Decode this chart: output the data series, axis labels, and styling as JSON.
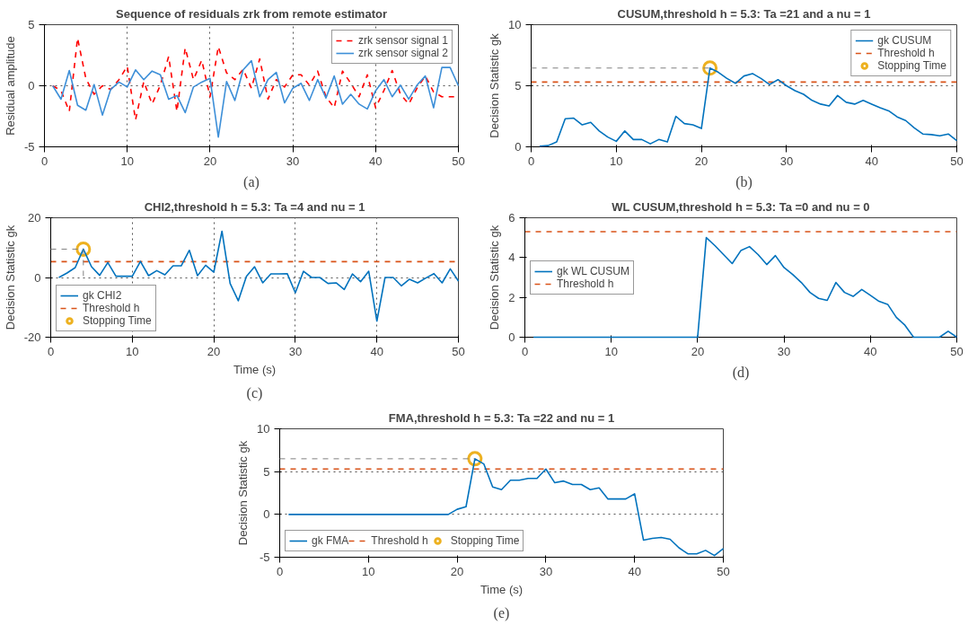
{
  "chart_data": [
    {
      "type": "line",
      "title": "Sequence of residuals zrk from remote estimator",
      "ylabel": "Residual amplitude",
      "annotations": [
        "(a)"
      ],
      "x": [
        1,
        2,
        3,
        4,
        5,
        6,
        7,
        8,
        9,
        10,
        11,
        12,
        13,
        14,
        15,
        16,
        17,
        18,
        19,
        20,
        21,
        22,
        23,
        24,
        25,
        26,
        27,
        28,
        29,
        30,
        31,
        32,
        33,
        34,
        35,
        36,
        37,
        38,
        39,
        40,
        41,
        42,
        43,
        44,
        45,
        46,
        47,
        48,
        49,
        50
      ],
      "xlim": [
        0,
        50
      ],
      "ylim": [
        -5,
        5
      ],
      "xticks": [
        0,
        10,
        20,
        30,
        40,
        50
      ],
      "yticks": [
        -5,
        0,
        5
      ],
      "grid": true,
      "legend": "top right",
      "series": [
        {
          "name": "zrk sensor signal 1",
          "color": "#ff0000",
          "line_style": "dashed",
          "values": [
            0,
            -0.4,
            -2.1,
            3.9,
            0.6,
            -0.7,
            0,
            -0.3,
            0.5,
            1.6,
            -2.8,
            0.35,
            -1.5,
            0.05,
            2.4,
            -2.1,
            3.1,
            0.5,
            2.1,
            -0.9,
            3.2,
            1.05,
            0.5,
            1.35,
            -0.2,
            2.2,
            -1.1,
            0.5,
            -0.1,
            0.9,
            0.9,
            0.05,
            1.2,
            -0.9,
            -1.8,
            1.2,
            0.2,
            -0.9,
            0.9,
            -1.8,
            -0.4,
            1.25,
            -0.7,
            -1.5,
            -0.2,
            0.8,
            -0.5,
            -0.9,
            -0.9,
            -0.9
          ]
        },
        {
          "name": "zrk sensor signal 2",
          "color": "#3d8fd8",
          "line_style": "solid",
          "values": [
            0,
            -1.1,
            1.25,
            -1.6,
            -2.0,
            0.1,
            -2.4,
            -0.3,
            0.3,
            -0.1,
            1.3,
            0.5,
            1.2,
            0.9,
            -1.1,
            -0.8,
            -2.2,
            -0.1,
            0.3,
            0.6,
            -4.2,
            0.35,
            -1.2,
            1.3,
            2.05,
            -0.9,
            0.5,
            1.1,
            -1.4,
            -0.2,
            0.2,
            -1.2,
            0.5,
            -1.0,
            0.8,
            -1.5,
            -0.7,
            -1.5,
            -1.9,
            -0.4,
            0.5,
            -0.9,
            0.05,
            -1.1,
            0.05,
            0.8,
            -1.8,
            1.5,
            1.5,
            0
          ]
        }
      ]
    },
    {
      "type": "line",
      "title": "CUSUM,threshold h = 5.3: Ta =21 and a nu = 1",
      "ylabel": "Decision Statistic gk",
      "annotations": [
        "(b)"
      ],
      "x": [
        1,
        2,
        3,
        4,
        5,
        6,
        7,
        8,
        9,
        10,
        11,
        12,
        13,
        14,
        15,
        16,
        17,
        18,
        19,
        20,
        21,
        22,
        23,
        24,
        25,
        26,
        27,
        28,
        29,
        30,
        31,
        32,
        33,
        34,
        35,
        36,
        37,
        38,
        39,
        40,
        41,
        42,
        43,
        44,
        45,
        46,
        47,
        48,
        49,
        50
      ],
      "xlim": [
        0,
        50
      ],
      "ylim": [
        0,
        10
      ],
      "xticks": [
        0,
        10,
        20,
        30,
        40,
        50
      ],
      "yticks": [
        0,
        5,
        10
      ],
      "grid": "y",
      "legend": "top right",
      "ref_lines": [
        {
          "axis": "y",
          "value": 5.3,
          "label": "Threshold h",
          "color": "#d95319",
          "line_style": "dashed"
        }
      ],
      "series": [
        {
          "name": "gk CUSUM",
          "color": "#0072bd",
          "line_style": "solid",
          "values": [
            0.05,
            0.1,
            0.4,
            2.3,
            2.35,
            1.8,
            2.0,
            1.3,
            0.8,
            0.45,
            1.3,
            0.6,
            0.6,
            0.25,
            0.6,
            0.4,
            2.5,
            1.9,
            1.8,
            1.5,
            6.45,
            6.1,
            5.6,
            5.2,
            5.8,
            6.0,
            5.6,
            5.1,
            5.5,
            5.0,
            4.6,
            4.3,
            3.8,
            3.5,
            3.35,
            4.2,
            3.65,
            3.5,
            3.8,
            3.5,
            3.2,
            2.95,
            2.45,
            2.15,
            1.55,
            1.05,
            1.0,
            0.9,
            1.05,
            0.5
          ]
        },
        {
          "type": "line",
          "color": "#808080",
          "line_style": "dashed",
          "x": [
            0,
            21
          ],
          "values": [
            6.45,
            6.45
          ]
        },
        {
          "type": "scatter",
          "name": "Stopping Time",
          "color": "#edb120",
          "marker": "circle",
          "x": [
            21
          ],
          "values": [
            6.45
          ]
        }
      ]
    },
    {
      "type": "line",
      "title": "CHI2,threshold h = 5.3: Ta =4 and nu = 1",
      "xlabel": "Time (s)",
      "ylabel": "Decision Statistic gk",
      "annotations": [
        "(c)"
      ],
      "x": [
        1,
        2,
        3,
        4,
        5,
        6,
        7,
        8,
        9,
        10,
        11,
        12,
        13,
        14,
        15,
        16,
        17,
        18,
        19,
        20,
        21,
        22,
        23,
        24,
        25,
        26,
        27,
        28,
        29,
        30,
        31,
        32,
        33,
        34,
        35,
        36,
        37,
        38,
        39,
        40,
        41,
        42,
        43,
        44,
        45,
        46,
        47,
        48,
        49,
        50
      ],
      "xlim": [
        0,
        50
      ],
      "ylim": [
        -20,
        20
      ],
      "xticks": [
        0,
        10,
        20,
        30,
        40,
        50
      ],
      "yticks": [
        -20,
        0,
        20
      ],
      "grid": true,
      "legend": "bottom left",
      "ref_lines": [
        {
          "axis": "y",
          "value": 5.3,
          "label": "Threshold h",
          "color": "#d95319",
          "line_style": "dashed"
        }
      ],
      "series": [
        {
          "name": "gk CHI2",
          "color": "#0072bd",
          "line_style": "solid",
          "values": [
            0,
            1.5,
            3.3,
            9.5,
            3.6,
            0.7,
            5.0,
            0.4,
            0.4,
            0.4,
            5.4,
            0.6,
            2.3,
            0.9,
            3.9,
            3.9,
            9.1,
            0.6,
            4.1,
            1.8,
            15.5,
            -2.0,
            -7.8,
            0.4,
            3.6,
            -1.8,
            1.2,
            1.2,
            1.3,
            -5.1,
            2.1,
            0,
            0,
            -2.0,
            -1.8,
            -4.0,
            1.2,
            -1.4,
            2.1,
            -14.6,
            0,
            0,
            -2.8,
            -0.6,
            -1.8,
            -0.2,
            1.3,
            -1.8,
            2.9,
            -1.2
          ]
        },
        {
          "type": "line",
          "color": "#808080",
          "line_style": "dashed",
          "x": [
            0,
            4
          ],
          "values": [
            9.5,
            9.5
          ]
        },
        {
          "type": "line",
          "color": "#808080",
          "line_style": "dashed",
          "x": [
            4,
            4
          ],
          "values": [
            9.5,
            0
          ]
        },
        {
          "type": "scatter",
          "name": "Stopping Time",
          "color": "#edb120",
          "marker": "circle",
          "x": [
            4
          ],
          "values": [
            9.5
          ]
        }
      ]
    },
    {
      "type": "line",
      "title": "WL CUSUM,threshold h = 5.3: Ta =0 and nu = 0",
      "ylabel": "Decision Statistic gk",
      "annotations": [
        "(d)"
      ],
      "x": [
        1,
        2,
        3,
        4,
        5,
        6,
        7,
        8,
        9,
        10,
        11,
        12,
        13,
        14,
        15,
        16,
        17,
        18,
        19,
        20,
        21,
        22,
        23,
        24,
        25,
        26,
        27,
        28,
        29,
        30,
        31,
        32,
        33,
        34,
        35,
        36,
        37,
        38,
        39,
        40,
        41,
        42,
        43,
        44,
        45,
        46,
        47,
        48,
        49,
        50
      ],
      "xlim": [
        0,
        50
      ],
      "ylim": [
        0,
        6
      ],
      "xticks": [
        0,
        10,
        20,
        30,
        40,
        50
      ],
      "yticks": [
        0,
        2,
        4,
        6
      ],
      "legend": "left",
      "ref_lines": [
        {
          "axis": "y",
          "value": 5.3,
          "label": "Threshold h",
          "color": "#d95319",
          "line_style": "dashed"
        }
      ],
      "series": [
        {
          "name": "gk WL CUSUM",
          "color": "#0072bd",
          "line_style": "solid",
          "values": [
            0,
            0,
            0,
            0,
            0,
            0,
            0,
            0,
            0,
            0,
            0,
            0,
            0,
            0,
            0,
            0,
            0,
            0,
            0,
            0,
            5.0,
            4.6,
            4.15,
            3.7,
            4.35,
            4.55,
            4.15,
            3.65,
            4.1,
            3.5,
            3.15,
            2.75,
            2.25,
            1.95,
            1.85,
            2.75,
            2.25,
            2.05,
            2.4,
            2.1,
            1.8,
            1.65,
            1.0,
            0.6,
            0,
            0,
            0,
            0,
            0.3,
            0
          ]
        }
      ]
    },
    {
      "type": "line",
      "title": "FMA,threshold h = 5.3: Ta =22 and nu = 1",
      "xlabel": "Time (s)",
      "ylabel": "Decision Statistic gk",
      "annotations": [
        "(e)"
      ],
      "x": [
        1,
        2,
        3,
        4,
        5,
        6,
        7,
        8,
        9,
        10,
        11,
        12,
        13,
        14,
        15,
        16,
        17,
        18,
        19,
        20,
        21,
        22,
        23,
        24,
        25,
        26,
        27,
        28,
        29,
        30,
        31,
        32,
        33,
        34,
        35,
        36,
        37,
        38,
        39,
        40,
        41,
        42,
        43,
        44,
        45,
        46,
        47,
        48,
        49,
        50
      ],
      "xlim": [
        0,
        50
      ],
      "ylim": [
        -5,
        10
      ],
      "xticks": [
        0,
        10,
        20,
        30,
        40,
        50
      ],
      "yticks": [
        -5,
        0,
        5,
        10
      ],
      "grid": "y",
      "legend": "bottom left",
      "ref_lines": [
        {
          "axis": "y",
          "value": 5.3,
          "label": "Threshold h",
          "color": "#d95319",
          "line_style": "dashed"
        }
      ],
      "series": [
        {
          "name": "gk FMA",
          "color": "#0072bd",
          "line_style": "solid",
          "values": [
            0,
            0,
            0,
            0,
            0,
            0,
            0,
            0,
            0,
            0,
            0,
            0,
            0,
            0,
            0,
            0,
            0,
            0,
            0,
            0.6,
            0.9,
            6.5,
            5.9,
            3.2,
            2.9,
            4.0,
            4.0,
            4.2,
            4.2,
            5.3,
            3.7,
            3.9,
            3.5,
            3.5,
            2.9,
            3.1,
            1.8,
            1.8,
            1.8,
            2.4,
            -3.0,
            -2.8,
            -2.7,
            -2.9,
            -3.9,
            -4.6,
            -4.6,
            -4.2,
            -4.8,
            -4.0
          ]
        },
        {
          "type": "line",
          "color": "#808080",
          "line_style": "dashed",
          "x": [
            0,
            22
          ],
          "values": [
            6.5,
            6.5
          ]
        },
        {
          "type": "scatter",
          "name": "Stopping Time",
          "color": "#edb120",
          "marker": "circle",
          "x": [
            22
          ],
          "values": [
            6.5
          ]
        }
      ]
    }
  ]
}
